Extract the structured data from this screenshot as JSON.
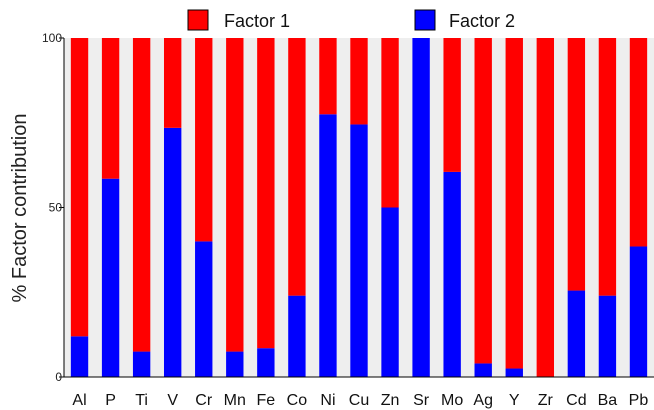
{
  "chart_data": {
    "type": "bar",
    "stacked": true,
    "percent": true,
    "categories": [
      "Al",
      "P",
      "Ti",
      "V",
      "Cr",
      "Mn",
      "Fe",
      "Co",
      "Ni",
      "Cu",
      "Zn",
      "Sr",
      "Mo",
      "Ag",
      "Y",
      "Zr",
      "Cd",
      "Ba",
      "Pb"
    ],
    "series": [
      {
        "name": "Factor 1",
        "color": "#ff0000",
        "values": [
          88,
          41.5,
          92.5,
          26.5,
          60,
          92.5,
          91.5,
          76,
          22.5,
          25.5,
          50,
          0,
          39.5,
          96,
          97.5,
          100,
          74.5,
          76,
          61.5
        ]
      },
      {
        "name": "Factor 2",
        "color": "#0000ff",
        "values": [
          12,
          58.5,
          7.5,
          73.5,
          40,
          7.5,
          8.5,
          24,
          77.5,
          74.5,
          50,
          100,
          60.5,
          4,
          2.5,
          0,
          25.5,
          24,
          38.5
        ]
      }
    ],
    "ylabel": "% Factor contribution",
    "xlabel": "",
    "ylim": [
      0,
      100
    ],
    "yticks": [
      0,
      50,
      100
    ],
    "legend_position": "top",
    "grid": false,
    "background_stripe_color": "#eeeeee"
  }
}
